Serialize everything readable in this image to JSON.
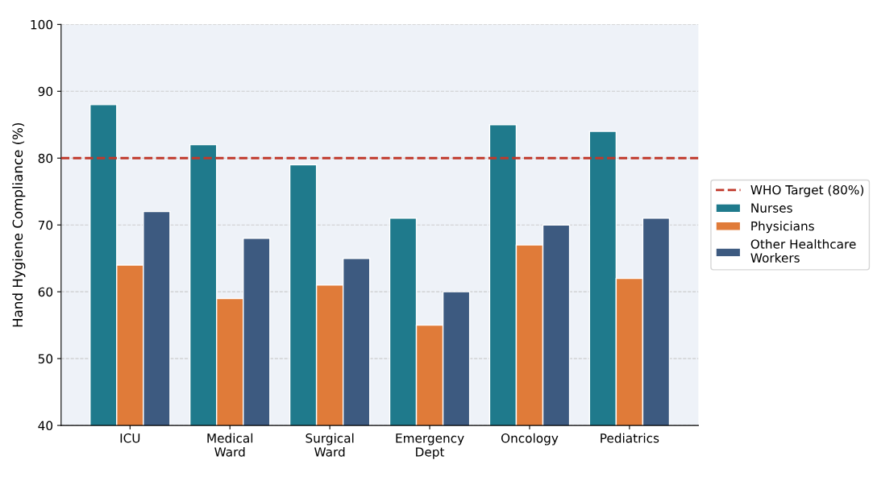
{
  "chart_data": {
    "type": "bar",
    "ylabel": "Hand Hygiene Compliance (%)",
    "categories": [
      "ICU",
      "Medical\nWard",
      "Surgical\nWard",
      "Emergency\nDept",
      "Oncology",
      "Pediatrics"
    ],
    "series": [
      {
        "name": "Nurses",
        "color": "#1f7a8c",
        "values": [
          88,
          82,
          79,
          71,
          85,
          84
        ]
      },
      {
        "name": "Physicians",
        "color": "#e07b39",
        "values": [
          64,
          59,
          61,
          55,
          67,
          62
        ]
      },
      {
        "name": "Other Healthcare\nWorkers",
        "color": "#3d5a80",
        "values": [
          72,
          68,
          65,
          60,
          70,
          71
        ]
      }
    ],
    "ylim": [
      40,
      100
    ],
    "yticks": [
      40,
      50,
      60,
      70,
      80,
      90,
      100
    ],
    "grid": "y",
    "legend": "right",
    "ref_lines": [
      {
        "axis": "y",
        "value": 80,
        "label": "WHO Target (80%)",
        "color": "#c0392b",
        "line_style": "dashed"
      }
    ]
  }
}
